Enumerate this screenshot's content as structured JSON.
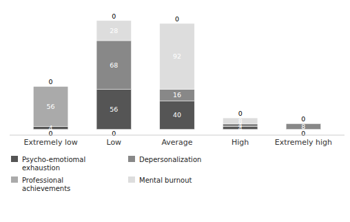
{
  "chart_data": {
    "type": "bar",
    "stacked": true,
    "categories": [
      "Extremely low",
      "Low",
      "Average",
      "High",
      "Extremely high"
    ],
    "series": [
      {
        "name": "Psycho-emotiomal\nexhaustion",
        "color": "#555555",
        "values": [
          4,
          56,
          40,
          4,
          0
        ]
      },
      {
        "name": "Professional\nachievements",
        "color": "#aaaaaa",
        "values": [
          56,
          0,
          0,
          0,
          0
        ]
      },
      {
        "name": "Depersonalization",
        "color": "#888888",
        "values": [
          0,
          68,
          16,
          4,
          8
        ]
      },
      {
        "name": "Mental burnout",
        "color": "#dddddd",
        "values": [
          0,
          28,
          92,
          8,
          0
        ]
      }
    ],
    "top_labels": [
      0,
      0,
      0,
      0,
      0
    ],
    "bottom_labels": [
      0,
      0,
      null,
      null,
      0
    ],
    "ylim": [
      -8,
      175
    ],
    "data_labels": true,
    "tick_labels": "x",
    "grid": false,
    "legend": "bottom"
  }
}
